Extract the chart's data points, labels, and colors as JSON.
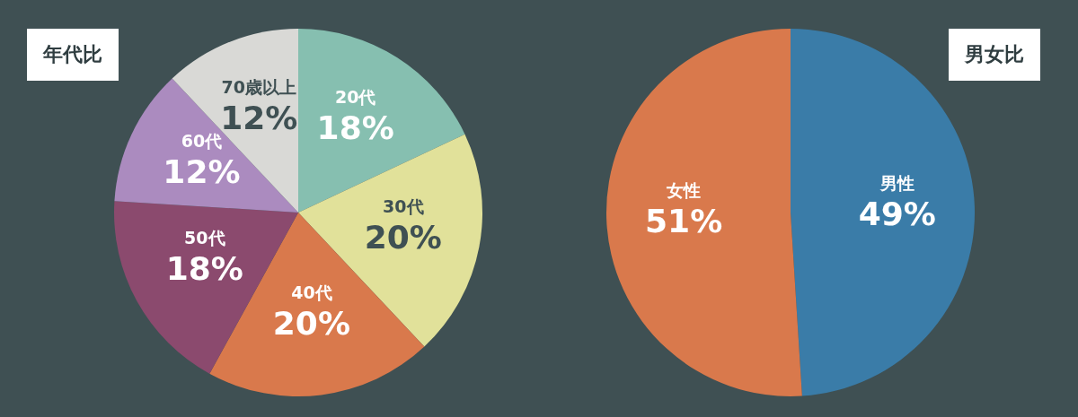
{
  "chart_data": [
    {
      "type": "pie",
      "title": "年代比",
      "categories": [
        "20代",
        "30代",
        "40代",
        "50代",
        "60代",
        "70歳以上"
      ],
      "values": [
        18,
        20,
        20,
        18,
        12,
        12
      ],
      "value_labels": [
        "18%",
        "20%",
        "20%",
        "18%",
        "12%",
        "12%"
      ],
      "colors": [
        "#86bfb0",
        "#e1e19a",
        "#d9794c",
        "#8b4a6e",
        "#ab8bbf",
        "#d9d9d6"
      ]
    },
    {
      "type": "pie",
      "title": "男女比",
      "categories": [
        "男性",
        "女性"
      ],
      "values": [
        49,
        51
      ],
      "value_labels": [
        "49%",
        "51%"
      ],
      "colors": [
        "#3a7ca8",
        "#d9794c"
      ]
    }
  ]
}
